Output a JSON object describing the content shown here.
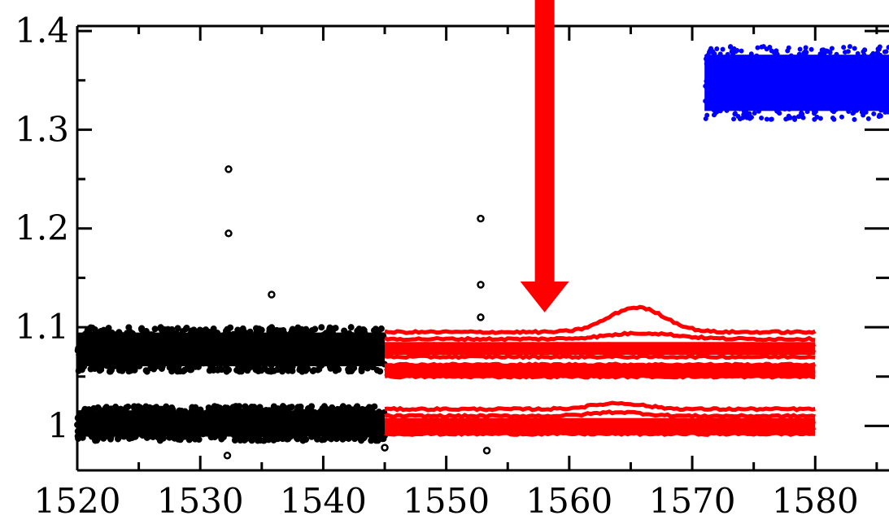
{
  "chart_data": {
    "type": "scatter",
    "title": "",
    "xlabel": "",
    "ylabel": "",
    "xlim": [
      1520,
      1586
    ],
    "ylim": [
      0.955,
      1.405
    ],
    "x_ticks": [
      {
        "value": 1520,
        "label": "1520"
      },
      {
        "value": 1530,
        "label": "1530"
      },
      {
        "value": 1540,
        "label": "1540"
      },
      {
        "value": 1550,
        "label": "1550"
      },
      {
        "value": 1560,
        "label": "1560"
      },
      {
        "value": 1570,
        "label": "1570"
      },
      {
        "value": 1580,
        "label": "1580"
      }
    ],
    "y_ticks": [
      {
        "value": 1.0,
        "label": "1"
      },
      {
        "value": 1.1,
        "label": "1.1"
      },
      {
        "value": 1.2,
        "label": "1.2"
      },
      {
        "value": 1.3,
        "label": "1.3"
      },
      {
        "value": 1.4,
        "label": "1.4"
      }
    ],
    "series": [
      {
        "color": "#000000",
        "style": "dense-band-markers",
        "x_range": [
          1520,
          1545
        ],
        "bands": [
          {
            "low": 1.055,
            "high": 1.1
          },
          {
            "low": 0.985,
            "high": 1.02
          }
        ],
        "outliers": [
          {
            "x": 1532.3,
            "y": 1.26
          },
          {
            "x": 1532.3,
            "y": 1.195
          },
          {
            "x": 1535.8,
            "y": 1.133
          },
          {
            "x": 1552.8,
            "y": 1.21
          },
          {
            "x": 1552.8,
            "y": 1.143
          },
          {
            "x": 1552.8,
            "y": 1.11
          },
          {
            "x": 1532.2,
            "y": 0.97
          },
          {
            "x": 1553.3,
            "y": 0.975
          },
          {
            "x": 1545,
            "y": 0.978
          }
        ]
      },
      {
        "color": "#ff0000",
        "style": "lines",
        "x_range": [
          1545,
          1580
        ],
        "curves": [
          {
            "base": 1.095,
            "bump": 0.025,
            "center": 1565.5,
            "width": 3.2
          },
          {
            "base": 1.088,
            "bump": 0.006,
            "center": 1566,
            "width": 4
          },
          {
            "base": 1.082,
            "bump": 0,
            "center": 1565,
            "width": 4
          },
          {
            "base": 1.075,
            "bump": 0,
            "center": 1565,
            "width": 4
          },
          {
            "base": 1.07,
            "bump": 0,
            "center": 1565,
            "width": 4
          },
          {
            "base": 1.062,
            "bump": 0,
            "center": 1565,
            "width": 4
          },
          {
            "base": 1.056,
            "bump": 0,
            "center": 1565,
            "width": 4
          },
          {
            "base": 1.05,
            "bump": 0,
            "center": 1565,
            "width": 4
          },
          {
            "base": 1.017,
            "bump": 0.006,
            "center": 1564,
            "width": 3
          },
          {
            "base": 1.01,
            "bump": 0.004,
            "center": 1564,
            "width": 3
          },
          {
            "base": 1.004,
            "bump": 0,
            "center": 1564,
            "width": 3
          },
          {
            "base": 0.998,
            "bump": 0,
            "center": 1564,
            "width": 3
          },
          {
            "base": 0.992,
            "bump": 0,
            "center": 1564,
            "width": 3
          }
        ]
      },
      {
        "color": "#0000ff",
        "style": "dense-band-markers",
        "x_range": [
          1571,
          1586
        ],
        "bands": [
          {
            "low": 1.31,
            "high": 1.385
          }
        ]
      }
    ],
    "annotations": [
      {
        "type": "arrow",
        "color": "#ff0000",
        "direction": "down",
        "x": 1558,
        "y_from": 1.405,
        "y_to": 1.115
      }
    ],
    "grid": false,
    "legend": "none"
  }
}
